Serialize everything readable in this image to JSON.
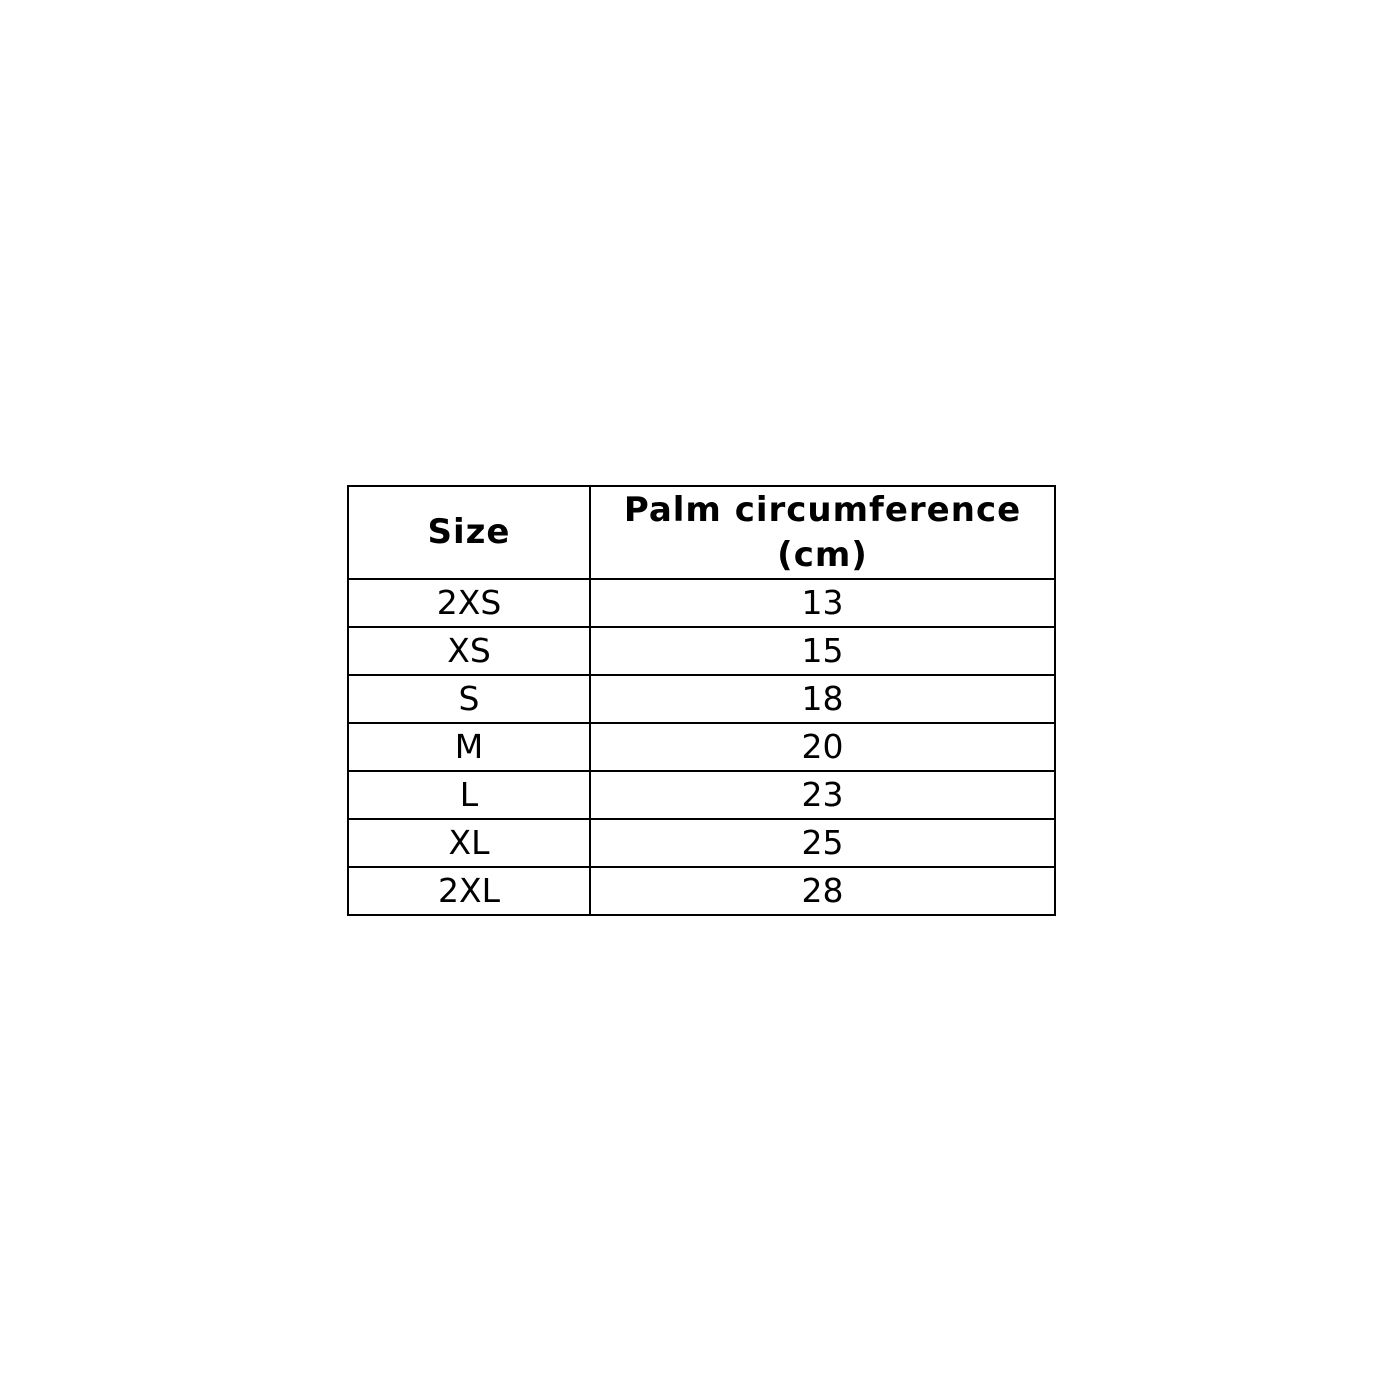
{
  "table": {
    "headers": [
      "Size",
      "Palm circumference (cm)"
    ],
    "rows": [
      [
        "2XS",
        "13"
      ],
      [
        "XS",
        "15"
      ],
      [
        "S",
        "18"
      ],
      [
        "M",
        "20"
      ],
      [
        "L",
        "23"
      ],
      [
        "XL",
        "25"
      ],
      [
        "2XL",
        "28"
      ]
    ]
  }
}
